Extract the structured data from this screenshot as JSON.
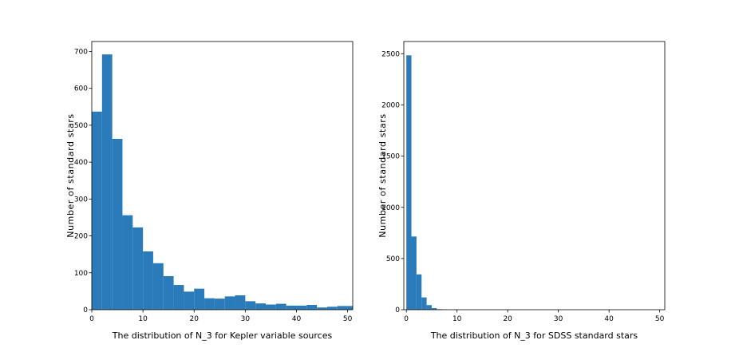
{
  "chart_data": [
    {
      "type": "bar",
      "title": "",
      "xlabel": "The distribution of N_3 for Kepler variable sources",
      "ylabel": "Number of standard stars",
      "xlim": [
        0,
        51
      ],
      "ylim": [
        0,
        727
      ],
      "xticks": [
        0,
        10,
        20,
        30,
        40,
        50
      ],
      "yticks": [
        0,
        100,
        200,
        300,
        400,
        500,
        600,
        700
      ],
      "bar_color": "#2b7bba",
      "bin_width": 2,
      "bin_starts": [
        0,
        2,
        4,
        6,
        8,
        10,
        12,
        14,
        16,
        18,
        20,
        22,
        24,
        26,
        28,
        30,
        32,
        34,
        36,
        38,
        40,
        42,
        44,
        46,
        48,
        50
      ],
      "values": [
        537,
        692,
        463,
        256,
        223,
        158,
        126,
        91,
        67,
        49,
        57,
        31,
        30,
        36,
        39,
        23,
        17,
        14,
        16,
        11,
        11,
        13,
        6,
        8,
        10,
        10
      ]
    },
    {
      "type": "bar",
      "title": "",
      "xlabel": "The distribution of N_3 for SDSS standard stars",
      "ylabel": "Number of standard stars",
      "xlim": [
        -0.5,
        51
      ],
      "ylim": [
        0,
        2620
      ],
      "xticks": [
        0,
        10,
        20,
        30,
        40,
        50
      ],
      "yticks": [
        0,
        500,
        1000,
        1500,
        2000,
        2500
      ],
      "bar_color": "#2b7bba",
      "bin_width": 1,
      "bin_starts": [
        0,
        1,
        2,
        3,
        4,
        5,
        6,
        7
      ],
      "values": [
        2485,
        715,
        345,
        120,
        45,
        15,
        5,
        2
      ]
    }
  ]
}
